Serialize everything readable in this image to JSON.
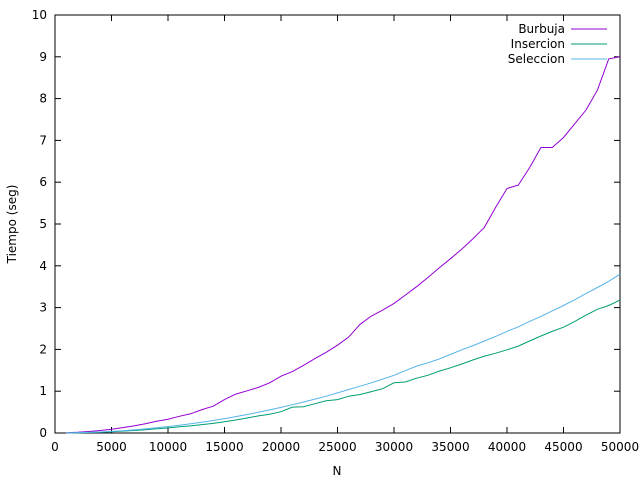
{
  "chart_data": {
    "type": "line",
    "title": "",
    "xlabel": "N",
    "ylabel": "Tiempo (seg)",
    "xlim": [
      0,
      50000
    ],
    "ylim": [
      0,
      10
    ],
    "xticks": [
      0,
      5000,
      10000,
      15000,
      20000,
      25000,
      30000,
      35000,
      40000,
      45000,
      50000
    ],
    "yticks": [
      0,
      1,
      2,
      3,
      4,
      5,
      6,
      7,
      8,
      9,
      10
    ],
    "xtick_labels": [
      "0",
      "5000",
      "10000",
      "15000",
      "20000",
      "25000",
      "30000",
      "35000",
      "40000",
      "45000",
      "50000"
    ],
    "ytick_labels": [
      "0",
      "1",
      "2",
      "3",
      "4",
      "5",
      "6",
      "7",
      "8",
      "9",
      "10"
    ],
    "grid": false,
    "legend_position": "top-right",
    "series": [
      {
        "name": "Burbuja",
        "color": "#9400d3",
        "x": [
          1000,
          2000,
          3000,
          4000,
          5000,
          6000,
          7000,
          8000,
          9000,
          10000,
          11000,
          12000,
          13000,
          14000,
          15000,
          16000,
          17000,
          18000,
          19000,
          20000,
          21000,
          22000,
          23000,
          24000,
          25000,
          26000,
          27000,
          28000,
          29000,
          30000,
          31000,
          32000,
          33000,
          34000,
          35000,
          36000,
          37000,
          38000,
          39000,
          40000,
          41000,
          42000,
          43000,
          44000,
          45000,
          46000,
          47000,
          48000,
          49000,
          50000
        ],
        "y": [
          0.004,
          0.016,
          0.035,
          0.06,
          0.09,
          0.13,
          0.17,
          0.22,
          0.28,
          0.33,
          0.4,
          0.46,
          0.56,
          0.64,
          0.8,
          0.93,
          1.01,
          1.09,
          1.2,
          1.36,
          1.47,
          1.62,
          1.78,
          1.93,
          2.1,
          2.3,
          2.6,
          2.8,
          2.94,
          3.1,
          3.3,
          3.5,
          3.72,
          3.95,
          4.17,
          4.4,
          4.65,
          4.92,
          5.4,
          5.85,
          5.93,
          6.35,
          6.83,
          6.83,
          7.07,
          7.4,
          7.73,
          8.2,
          8.95,
          9.0
        ]
      },
      {
        "name": "Insercion",
        "color": "#009e73",
        "x": [
          1000,
          2000,
          3000,
          4000,
          5000,
          6000,
          7000,
          8000,
          9000,
          10000,
          11000,
          12000,
          13000,
          14000,
          15000,
          16000,
          17000,
          18000,
          19000,
          20000,
          21000,
          22000,
          23000,
          24000,
          25000,
          26000,
          27000,
          28000,
          29000,
          30000,
          31000,
          32000,
          33000,
          34000,
          35000,
          36000,
          37000,
          38000,
          39000,
          40000,
          41000,
          42000,
          43000,
          44000,
          45000,
          46000,
          47000,
          48000,
          49000,
          50000
        ],
        "y": [
          0.001,
          0.005,
          0.011,
          0.02,
          0.03,
          0.045,
          0.06,
          0.08,
          0.1,
          0.12,
          0.15,
          0.17,
          0.2,
          0.23,
          0.27,
          0.31,
          0.36,
          0.41,
          0.45,
          0.51,
          0.62,
          0.63,
          0.7,
          0.77,
          0.8,
          0.88,
          0.92,
          0.99,
          1.06,
          1.2,
          1.22,
          1.31,
          1.38,
          1.48,
          1.56,
          1.65,
          1.75,
          1.84,
          1.91,
          1.99,
          2.08,
          2.2,
          2.32,
          2.43,
          2.53,
          2.67,
          2.82,
          2.96,
          3.05,
          3.18
        ]
      },
      {
        "name": "Seleccion",
        "color": "#56b4e9",
        "x": [
          1000,
          2000,
          3000,
          4000,
          5000,
          6000,
          7000,
          8000,
          9000,
          10000,
          11000,
          12000,
          13000,
          14000,
          15000,
          16000,
          17000,
          18000,
          19000,
          20000,
          21000,
          22000,
          23000,
          24000,
          25000,
          26000,
          27000,
          28000,
          29000,
          30000,
          31000,
          32000,
          33000,
          34000,
          35000,
          36000,
          37000,
          38000,
          39000,
          40000,
          41000,
          42000,
          43000,
          44000,
          45000,
          46000,
          47000,
          48000,
          49000,
          50000
        ],
        "y": [
          0.0015,
          0.006,
          0.014,
          0.025,
          0.038,
          0.055,
          0.075,
          0.098,
          0.124,
          0.153,
          0.185,
          0.22,
          0.258,
          0.3,
          0.344,
          0.392,
          0.443,
          0.496,
          0.553,
          0.613,
          0.676,
          0.742,
          0.81,
          0.88,
          0.96,
          1.04,
          1.12,
          1.2,
          1.29,
          1.38,
          1.49,
          1.6,
          1.68,
          1.77,
          1.88,
          1.99,
          2.09,
          2.2,
          2.31,
          2.43,
          2.54,
          2.67,
          2.79,
          2.92,
          3.05,
          3.19,
          3.34,
          3.48,
          3.63,
          3.8
        ]
      }
    ]
  }
}
